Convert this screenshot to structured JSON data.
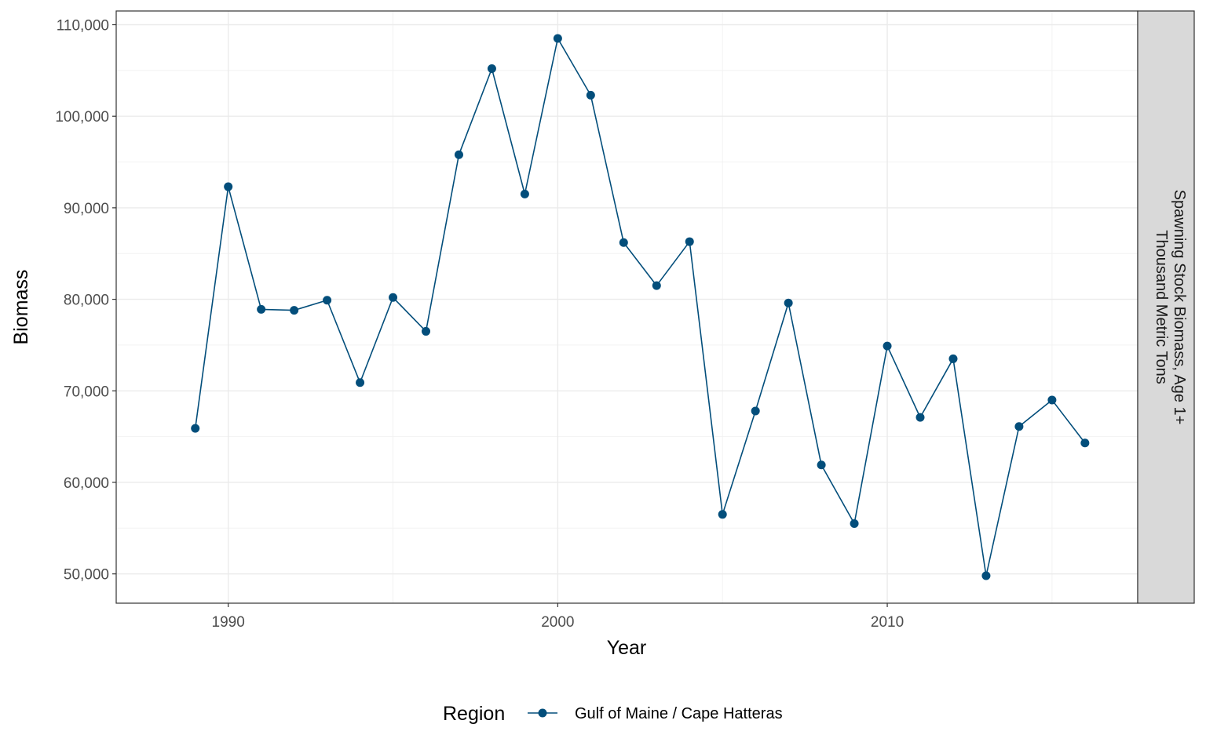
{
  "chart_data": {
    "type": "line",
    "xlabel": "Year",
    "ylabel": "Biomass",
    "facet_label": [
      "Spawning Stock Biomass, Age 1+",
      "Thousand Metric Tons"
    ],
    "xlim": [
      1986.6,
      2017.6
    ],
    "ylim": [
      46800,
      111500
    ],
    "x_ticks": [
      1990,
      2000,
      2010
    ],
    "x_tick_labels": [
      "1990",
      "2000",
      "2010"
    ],
    "y_ticks": [
      50000,
      60000,
      70000,
      80000,
      90000,
      100000,
      110000
    ],
    "y_tick_labels": [
      "50,000",
      "60,000",
      "70,000",
      "80,000",
      "90,000",
      "100,000",
      "110,000"
    ],
    "grid": true,
    "legend": {
      "title": "Region",
      "position": "bottom"
    },
    "series": [
      {
        "name": "Gulf of Maine / Cape Hatteras",
        "color": "#034e7b",
        "x": [
          1989,
          1990,
          1991,
          1992,
          1993,
          1994,
          1995,
          1996,
          1997,
          1998,
          1999,
          2000,
          2001,
          2002,
          2003,
          2004,
          2005,
          2006,
          2007,
          2008,
          2009,
          2010,
          2011,
          2012,
          2013,
          2014,
          2015,
          2016
        ],
        "y": [
          65900,
          92300,
          78900,
          78800,
          79900,
          70900,
          80200,
          76500,
          95800,
          105200,
          91500,
          108500,
          102300,
          86200,
          81500,
          86300,
          56500,
          67800,
          79600,
          61900,
          55500,
          74900,
          67100,
          73500,
          49800,
          66100,
          69000,
          64300
        ]
      }
    ]
  }
}
